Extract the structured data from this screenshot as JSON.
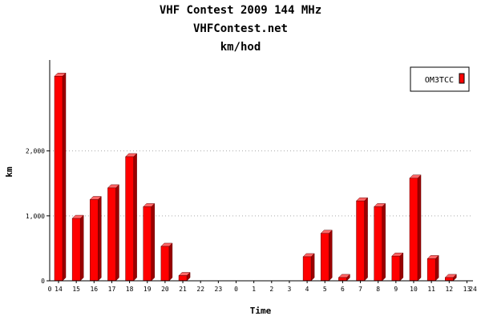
{
  "chart_data": {
    "type": "bar",
    "title_lines": [
      "VHF Contest 2009 144 MHz",
      "VHFContest.net",
      "km/hod"
    ],
    "xlabel": "Time",
    "ylabel": "km",
    "x_range_labels": [
      "0",
      "24"
    ],
    "categories": [
      "14",
      "15",
      "16",
      "17",
      "18",
      "19",
      "20",
      "21",
      "22",
      "23",
      "0",
      "1",
      "2",
      "3",
      "4",
      "5",
      "6",
      "7",
      "8",
      "9",
      "10",
      "11",
      "12",
      "13"
    ],
    "series": [
      {
        "name": "OM3TCC",
        "color": "#ff0000",
        "values": [
          3150,
          960,
          1250,
          1430,
          1910,
          1140,
          530,
          80,
          0,
          0,
          0,
          0,
          0,
          0,
          370,
          730,
          50,
          1230,
          1140,
          380,
          1580,
          340,
          50,
          0
        ]
      }
    ],
    "y_ticks": [
      0,
      1000,
      2000
    ],
    "y_tick_labels": [
      "0",
      "1,000",
      "2,000"
    ],
    "ylim": [
      0,
      3400
    ],
    "grid": "horizontal dotted",
    "legend_position": "top-right"
  }
}
